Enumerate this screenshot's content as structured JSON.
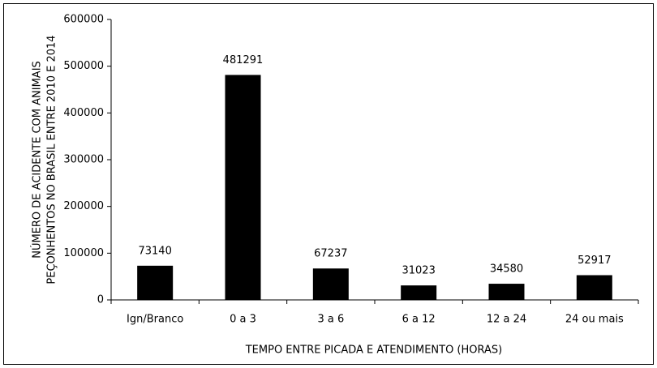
{
  "chart_data": {
    "type": "bar",
    "y_label": [
      "NÚMERO DE ACIDENTE COM ANIMAIS",
      "PEÇONHENTOS NO BRASIL ENTRE 2010 E 2014"
    ],
    "x_label": "TEMPO ENTRE PICADA E ATENDIMENTO (HORAS)",
    "categories": [
      "Ign/Branco",
      "0 a 3",
      "3 a 6",
      "6 a 12",
      "12 a 24",
      "24 ou mais"
    ],
    "values": [
      73140,
      481291,
      67237,
      31023,
      34580,
      52917
    ],
    "color": "#000000",
    "ylim": [
      0,
      600000
    ],
    "yticks": [
      0,
      100000,
      200000,
      300000,
      400000,
      500000,
      600000
    ],
    "grid": false
  }
}
